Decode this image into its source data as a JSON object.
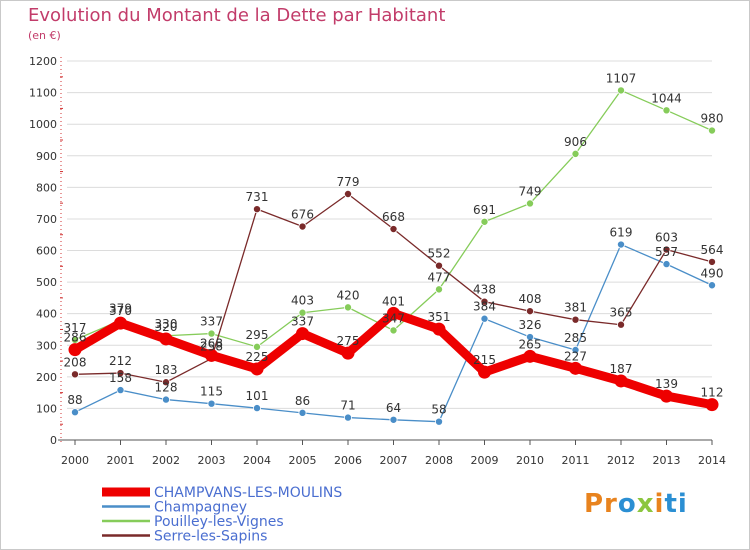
{
  "header": {
    "title": "Evolution du Montant de la Dette par Habitant",
    "subtitle": "(en €)"
  },
  "logo": {
    "text": "Proxiti",
    "parts": [
      "Pr",
      "o",
      "x",
      "i",
      "ti"
    ]
  },
  "chart_data": {
    "type": "line",
    "title": "Evolution du Montant de la Dette par Habitant",
    "subtitle": "(en €)",
    "xlabel": "",
    "ylabel": "",
    "ylim": [
      0,
      1200
    ],
    "yticks": [
      "0",
      "100",
      "200",
      "300",
      "400",
      "500",
      "600",
      "700",
      "800",
      "900",
      "1000",
      "1100",
      "1200"
    ],
    "categories": [
      "2000",
      "2001",
      "2002",
      "2003",
      "2004",
      "2005",
      "2006",
      "2007",
      "2008",
      "2009",
      "2010",
      "2011",
      "2012",
      "2013",
      "2014"
    ],
    "grid": "horizontal",
    "legend_position": "bottom-left",
    "series": [
      {
        "name": "CHAMPVANS-LES-MOULINS",
        "color": "#ee0000",
        "emphasis": true,
        "values": [
          286,
          370,
          320,
          268,
          225,
          337,
          275,
          401,
          351,
          215,
          265,
          227,
          187,
          139,
          112
        ],
        "labels": [
          "286",
          "370",
          "320",
          "268",
          "225",
          "337",
          "275",
          "401",
          "351",
          "215",
          "265",
          "227",
          "187",
          "139",
          "112"
        ]
      },
      {
        "name": "Champagney",
        "color": "#4a8ec8",
        "values": [
          88,
          158,
          128,
          115,
          101,
          86,
          71,
          64,
          58,
          384,
          326,
          285,
          619,
          557,
          490
        ],
        "labels": [
          "88",
          "158",
          "128",
          "115",
          "101",
          "86",
          "71",
          "64",
          "58",
          "384",
          "326",
          "285",
          "619",
          "557",
          "490"
        ]
      },
      {
        "name": "Pouilley-les-Vignes",
        "color": "#86cc5a",
        "values": [
          317,
          379,
          330,
          337,
          295,
          403,
          420,
          347,
          477,
          691,
          749,
          906,
          1107,
          1044,
          980
        ],
        "labels": [
          "317",
          "379",
          "330",
          "337",
          "295",
          "403",
          "420",
          "347",
          "477",
          "691",
          "749",
          "906",
          "1107",
          "1044",
          "980"
        ]
      },
      {
        "name": "Serre-les-Sapins",
        "color": "#7a2a2a",
        "values": [
          208,
          212,
          183,
          258,
          731,
          676,
          779,
          668,
          552,
          438,
          408,
          381,
          365,
          603,
          564
        ],
        "labels": [
          "208",
          "212",
          "183",
          "258",
          "731",
          "676",
          "779",
          "668",
          "552",
          "438",
          "408",
          "381",
          "365",
          "603",
          "564"
        ]
      }
    ]
  }
}
